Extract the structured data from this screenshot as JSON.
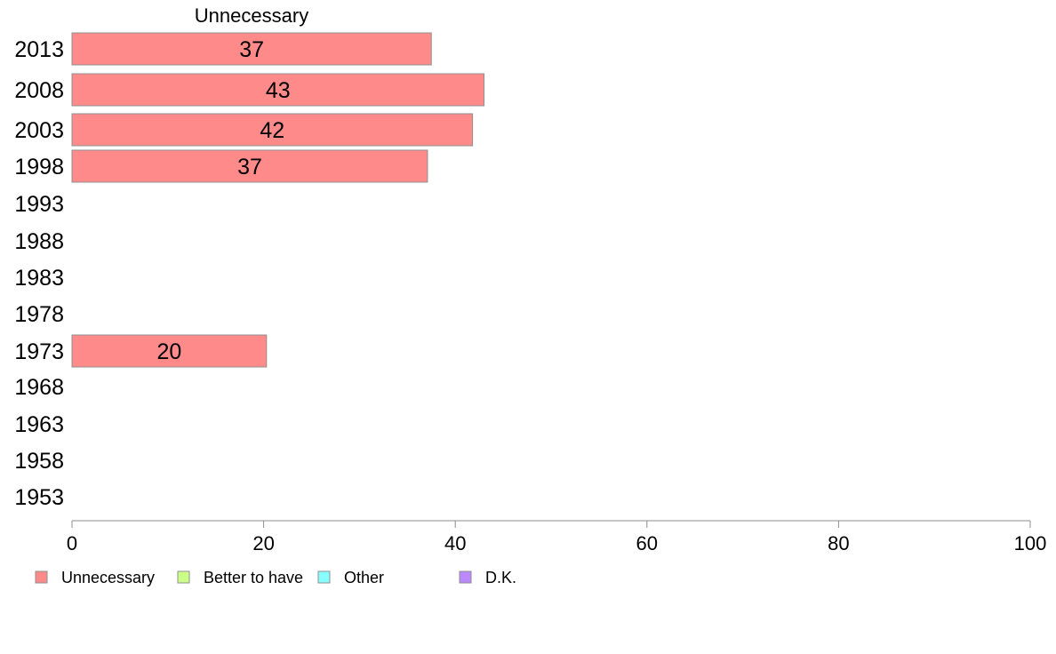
{
  "chart_data": {
    "type": "bar",
    "orientation": "horizontal",
    "stacked": true,
    "title": "Unnecessary",
    "categories": [
      "2013",
      "2008",
      "2003",
      "1998",
      "1993",
      "1988",
      "1983",
      "1978",
      "1973",
      "1968",
      "1963",
      "1958",
      "1953"
    ],
    "series": [
      {
        "name": "Unnecessary",
        "color": "#ff8a8a",
        "values": [
          37.5,
          43,
          41.8,
          37.1,
          null,
          null,
          null,
          null,
          20.3,
          null,
          null,
          null,
          null
        ],
        "labels": [
          "37",
          "43",
          "42",
          "37",
          "",
          "",
          "",
          "",
          "20",
          "",
          "",
          "",
          ""
        ]
      },
      {
        "name": "Better to have",
        "color": "#ccff88",
        "values": [
          null,
          null,
          null,
          null,
          null,
          null,
          null,
          null,
          null,
          null,
          null,
          null,
          null
        ]
      },
      {
        "name": "Other",
        "color": "#88ffff",
        "values": [
          null,
          null,
          null,
          null,
          null,
          null,
          null,
          null,
          null,
          null,
          null,
          null,
          null
        ]
      },
      {
        "name": "D.K.",
        "color": "#bb88ff",
        "values": [
          null,
          null,
          null,
          null,
          null,
          null,
          null,
          null,
          null,
          null,
          null,
          null,
          null
        ]
      }
    ],
    "xlim": [
      0,
      100
    ],
    "xticks": [
      0,
      20,
      40,
      60,
      80,
      100
    ],
    "xlabel": "",
    "ylabel": "",
    "grid": false,
    "legend": "bottom"
  }
}
